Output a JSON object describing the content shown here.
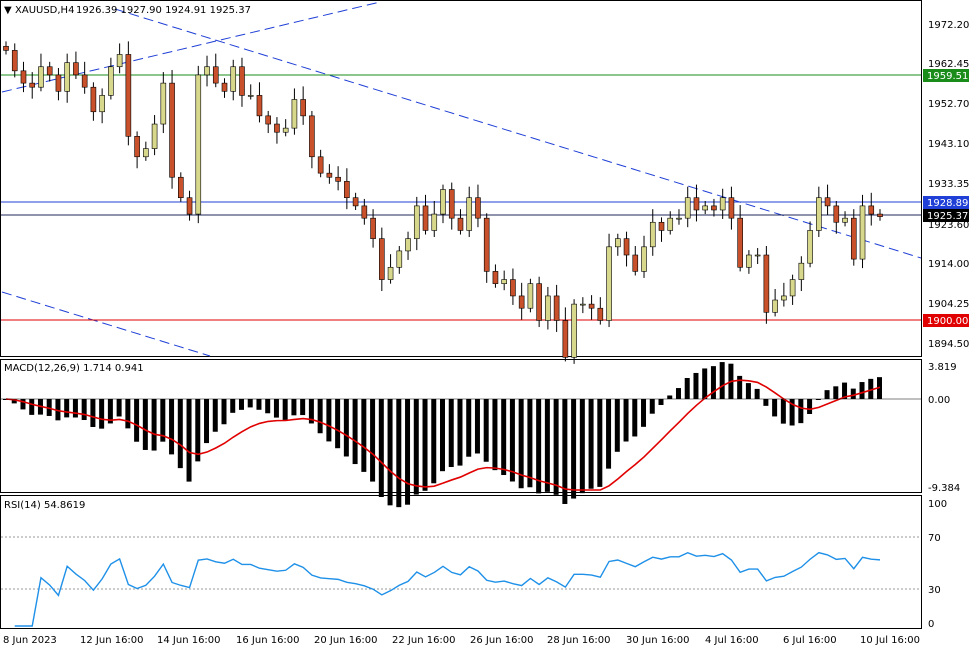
{
  "header": {
    "symbol_tf": "XAUUSD,H4",
    "ohlc": "1926.39 1927.90 1924.91 1925.37"
  },
  "macd": {
    "label": "MACD(12,26,9) 1.714 0.941",
    "axis_ticks": [
      "3.819",
      "0.00",
      "-9.384"
    ]
  },
  "rsi": {
    "label": "RSI(14) 54.8619",
    "axis_ticks": [
      "100",
      "70",
      "30",
      "0"
    ]
  },
  "price_axis_ticks": [
    "1972.20",
    "1962.45",
    "1952.70",
    "1943.10",
    "1933.35",
    "1923.60",
    "1914.00",
    "1904.25",
    "1894.50"
  ],
  "levels": {
    "green": {
      "value": "1959.51",
      "color": "#1a8c1a"
    },
    "blue": {
      "value": "1928.89",
      "color": "#1f3fd6"
    },
    "bid": {
      "value": "1925.37",
      "color": "#000000"
    },
    "red": {
      "value": "1900.00",
      "color": "#e00000"
    }
  },
  "time_axis": [
    "8 Jun 2023",
    "12 Jun 16:00",
    "14 Jun 16:00",
    "16 Jun 16:00",
    "20 Jun 16:00",
    "22 Jun 16:00",
    "26 Jun 16:00",
    "28 Jun 16:00",
    "30 Jun 16:00",
    "4 Jul 16:00",
    "6 Jul 16:00",
    "10 Jul 16:00"
  ],
  "colors": {
    "bull_candle": "#d8d88c",
    "bear_candle": "#c8502a",
    "wick": "#000000",
    "trendline": "#1f3fd6",
    "macd_signal": "#e00000",
    "rsi_line": "#1e90e8"
  },
  "candle_closes": [
    1966,
    1961,
    1958,
    1957,
    1962,
    1960,
    1956,
    1963,
    1960,
    1957,
    1951,
    1955,
    1962,
    1965,
    1945,
    1940,
    1942,
    1948,
    1958,
    1935,
    1930,
    1926,
    1960,
    1962,
    1958,
    1956,
    1962,
    1955,
    1955,
    1950,
    1948,
    1946,
    1947,
    1954,
    1950,
    1940,
    1936,
    1935,
    1934,
    1930,
    1928,
    1925,
    1920,
    1910,
    1913,
    1917,
    1920,
    1928,
    1922,
    1926,
    1932,
    1925,
    1922,
    1930,
    1925,
    1912,
    1909,
    1910,
    1906,
    1903,
    1909,
    1900,
    1906,
    1900,
    1891,
    1904,
    1904,
    1903,
    1900,
    1918,
    1920,
    1916,
    1912,
    1918,
    1924,
    1922,
    1925,
    1925,
    1930,
    1927,
    1928,
    1927,
    1930,
    1925,
    1913,
    1916,
    1916,
    1902,
    1905,
    1906,
    1910,
    1914,
    1922,
    1930,
    1928,
    1924,
    1925,
    1915,
    1928,
    1926,
    1925.37
  ]
}
